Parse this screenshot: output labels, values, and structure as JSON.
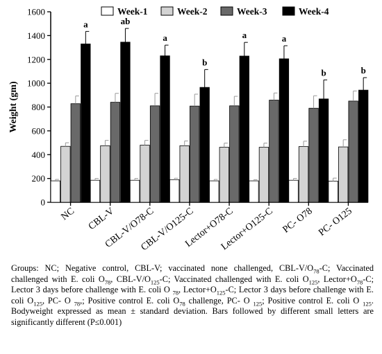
{
  "chart_data": {
    "type": "bar",
    "ylabel": "Weight (gm)",
    "xlabel": "",
    "ylim": [
      0,
      1600
    ],
    "yticks": [
      0,
      200,
      400,
      600,
      800,
      1000,
      1200,
      1400,
      1600
    ],
    "legend_position": "top",
    "categories": [
      "NC",
      "CBL-V",
      "CBL-V/O78-C",
      "CBL-V/O125-C",
      "Lector+O78-C",
      "Lector+O125-C",
      "PC- O78",
      "PC- O125"
    ],
    "series": [
      {
        "name": "Week-1",
        "color": "#ffffff",
        "values": [
          180,
          185,
          185,
          190,
          180,
          180,
          185,
          178
        ],
        "errors": [
          12,
          15,
          15,
          12,
          12,
          10,
          15,
          25
        ]
      },
      {
        "name": "Week-2",
        "color": "#d3d3d3",
        "values": [
          470,
          475,
          480,
          475,
          462,
          462,
          468,
          465
        ],
        "errors": [
          30,
          45,
          40,
          40,
          35,
          35,
          45,
          60
        ]
      },
      {
        "name": "Week-3",
        "color": "#696969",
        "values": [
          828,
          840,
          810,
          808,
          810,
          858,
          790,
          850
        ],
        "errors": [
          65,
          75,
          105,
          100,
          80,
          60,
          105,
          85
        ]
      },
      {
        "name": "Week-4",
        "color": "#000000",
        "values": [
          1330,
          1345,
          1230,
          965,
          1228,
          1205,
          868,
          942
        ],
        "errors": [
          105,
          115,
          90,
          150,
          115,
          110,
          160,
          105
        ]
      }
    ],
    "significance_letters": [
      "a",
      "ab",
      "a",
      "b",
      "a",
      "a",
      "b",
      "b"
    ]
  },
  "caption": {
    "segments": [
      {
        "t": "Groups: NC; Negative control, CBL-V; vaccinated none challenged, CBL-V/O"
      },
      {
        "t": "78",
        "sub": true
      },
      {
        "t": "-C; Vaccinated challenged with E. coli O"
      },
      {
        "t": "78",
        "sub": true
      },
      {
        "t": ", CBL-V/O"
      },
      {
        "t": "125",
        "sub": true
      },
      {
        "t": "-C; Vaccinated challenged with E. coli O"
      },
      {
        "t": "125",
        "sub": true
      },
      {
        "t": ", Lector+O"
      },
      {
        "t": "78",
        "sub": true
      },
      {
        "t": "-C; Lector 3 days before challenge with E. coli O "
      },
      {
        "t": "78",
        "sub": true
      },
      {
        "t": ", Lector+O"
      },
      {
        "t": "125",
        "sub": true
      },
      {
        "t": "-C; Lector 3 days before challenge with E. coli O"
      },
      {
        "t": "125",
        "sub": true
      },
      {
        "t": ", PC- O "
      },
      {
        "t": "78",
        "sub": true
      },
      {
        "t": ",; Positive control E. coli O"
      },
      {
        "t": "78",
        "sub": true
      },
      {
        "t": " challenge, PC- O "
      },
      {
        "t": "125",
        "sub": true
      },
      {
        "t": "; Positive control E. coli O "
      },
      {
        "t": "125",
        "sub": true
      },
      {
        "t": ". Bodyweight expressed as mean ± standard deviation. Bars followed by different small letters are significantly different (P≤0.001)"
      }
    ]
  }
}
